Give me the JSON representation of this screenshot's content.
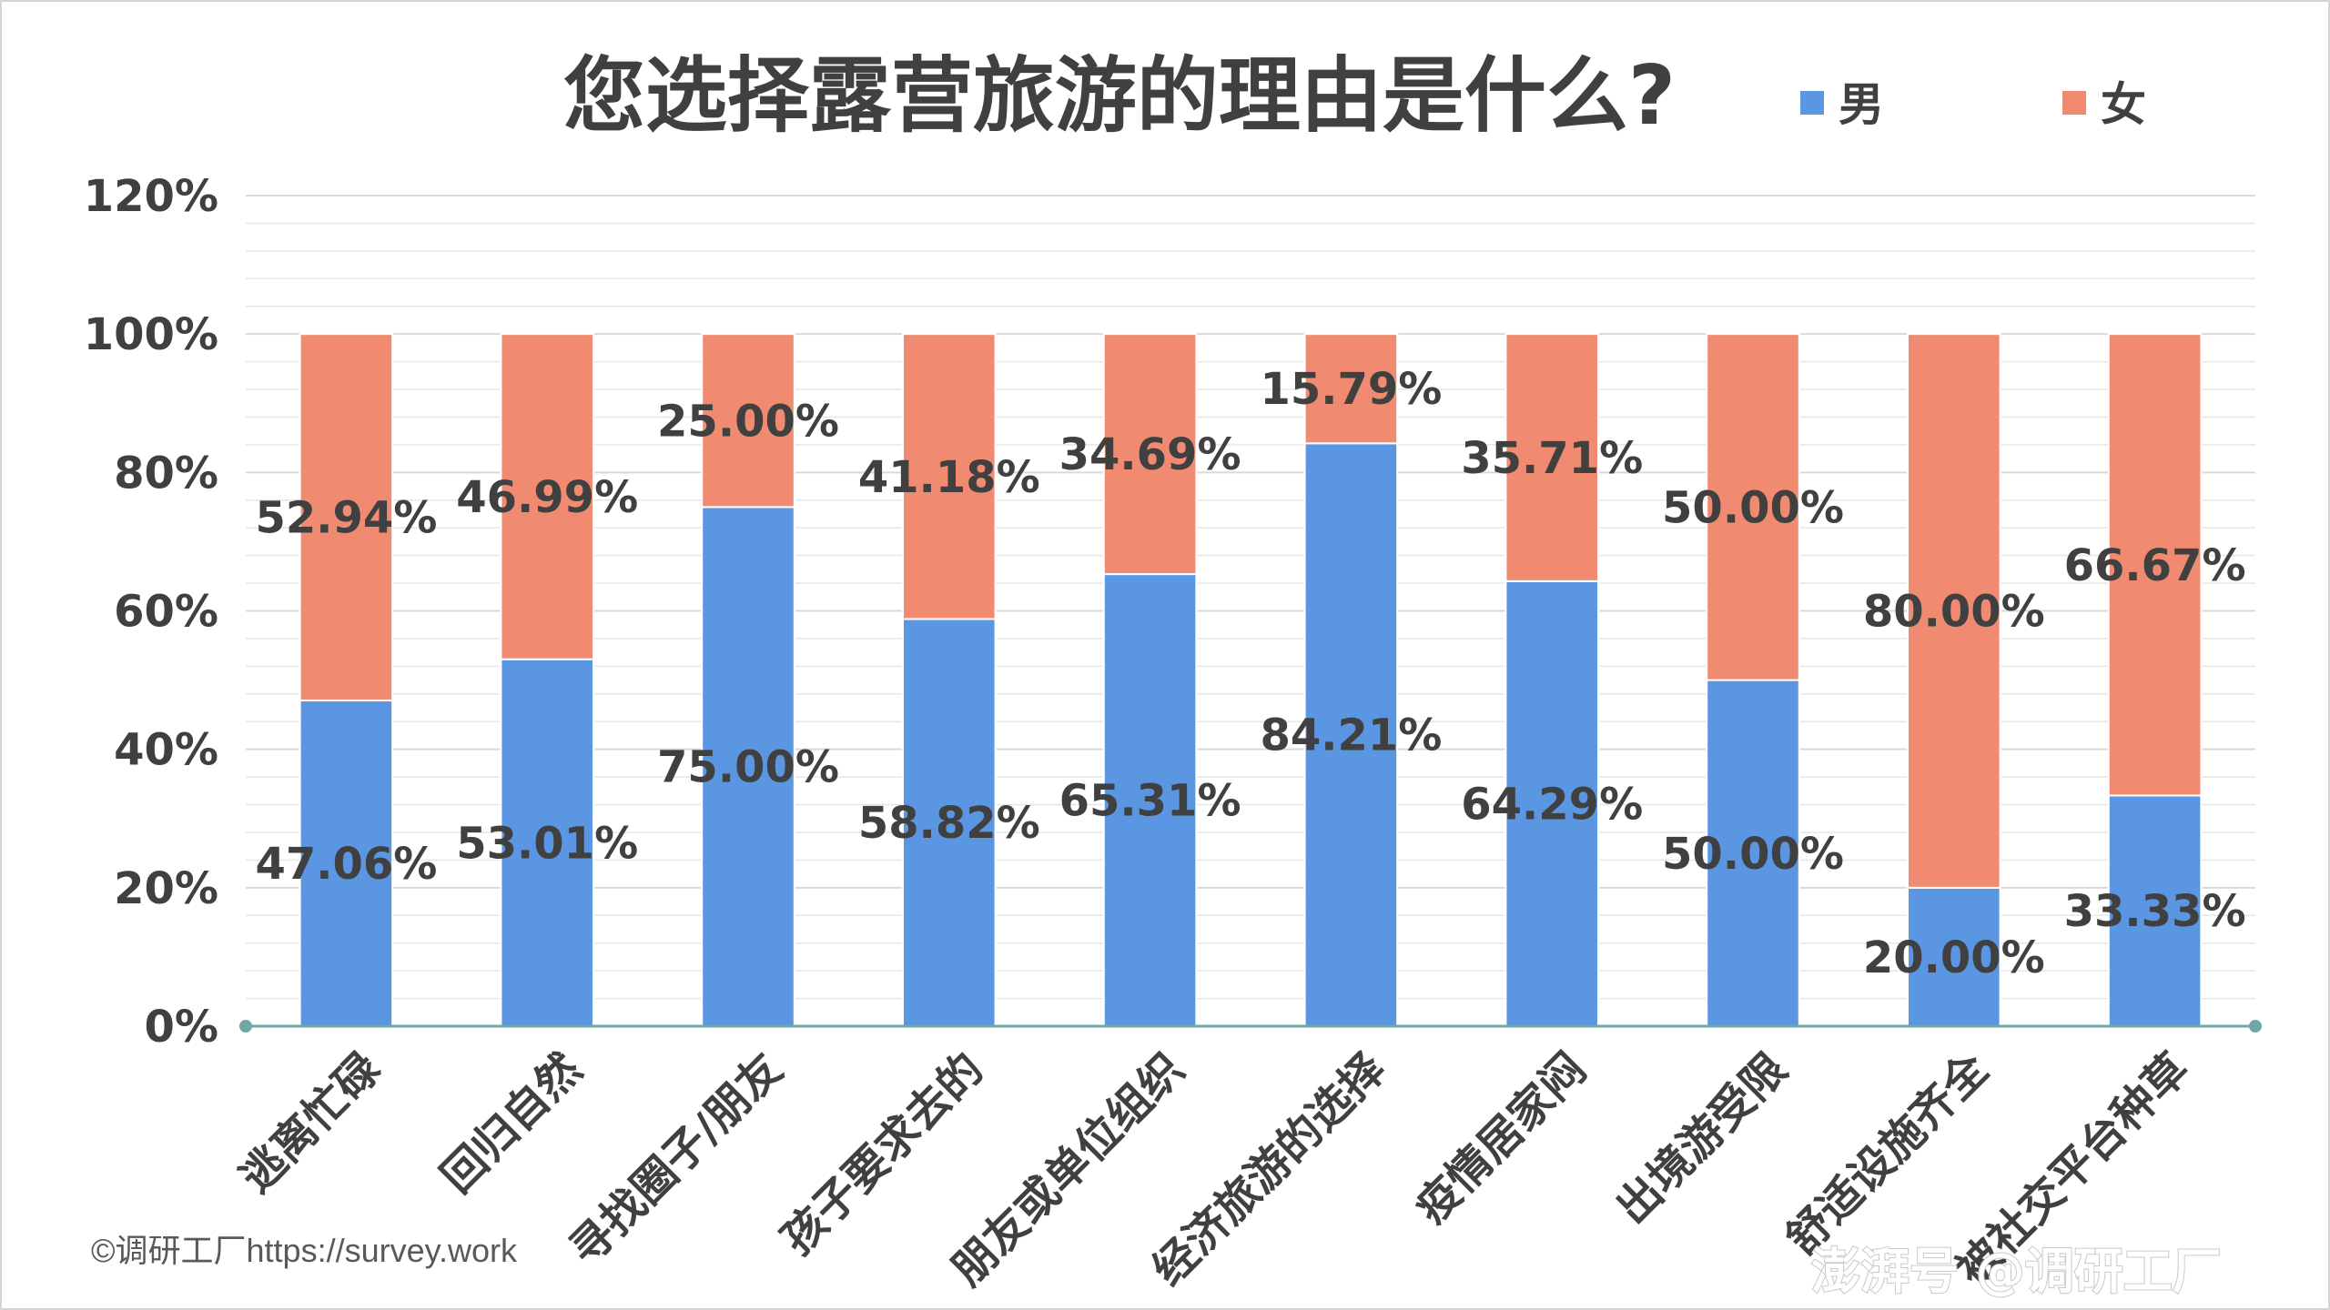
{
  "chart_data": {
    "type": "bar",
    "stacked": true,
    "title": "您选择露营旅游的理由是什么?",
    "categories": [
      "逃离忙碌",
      "回归自然",
      "寻找圈子/朋友",
      "孩子要求去的",
      "朋友或单位组织",
      "经济旅游的选择",
      "疫情居家闷",
      "出境游受限",
      "舒适设施齐全",
      "被社交平台种草"
    ],
    "series": [
      {
        "name": "男",
        "color": "#5b96e3",
        "values": [
          47.06,
          53.01,
          75.0,
          58.82,
          65.31,
          84.21,
          64.29,
          50.0,
          20.0,
          33.33
        ],
        "labels": [
          "47.06%",
          "53.01%",
          "75.00%",
          "58.82%",
          "65.31%",
          "84.21%",
          "64.29%",
          "50.00%",
          "20.00%",
          "33.33%"
        ]
      },
      {
        "name": "女",
        "color": "#f08b72",
        "values": [
          52.94,
          46.99,
          25.0,
          41.18,
          34.69,
          15.79,
          35.71,
          50.0,
          80.0,
          66.67
        ],
        "labels": [
          "52.94%",
          "46.99%",
          "25.00%",
          "41.18%",
          "34.69%",
          "15.79%",
          "35.71%",
          "50.00%",
          "80.00%",
          "66.67%"
        ]
      }
    ],
    "ylim": [
      0,
      120
    ],
    "yticks": [
      0,
      20,
      40,
      60,
      80,
      100,
      120
    ],
    "ytick_labels": [
      "0%",
      "20%",
      "40%",
      "60%",
      "80%",
      "100%",
      "120%"
    ],
    "legend_position": "top-right",
    "grid": true,
    "axis_color": "#6fa9a5",
    "grid_color": "#e6e6e6"
  },
  "credit": "©调研工厂https://survey.work",
  "watermark": "澎湃号 @调研工厂"
}
